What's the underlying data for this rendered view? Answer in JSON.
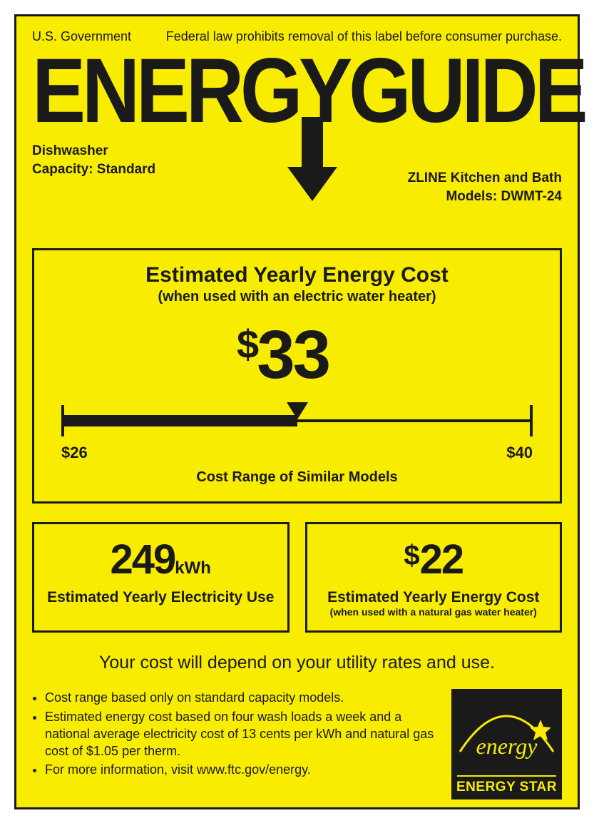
{
  "header": {
    "gov": "U.S. Government",
    "law": "Federal law prohibits removal of this label before consumer purchase."
  },
  "logo": {
    "text": "ENERGYGUIDE"
  },
  "meta": {
    "product": "Dishwasher",
    "capacity_label": "Capacity: Standard",
    "brand": "ZLINE Kitchen and Bath",
    "models_label": "Models: DWMT-24"
  },
  "cost_box": {
    "title": "Estimated Yearly Energy Cost",
    "subtitle": "(when used with an electric water heater)",
    "value": "33",
    "currency": "$",
    "scale": {
      "min_label": "$26",
      "max_label": "$40",
      "min": 26,
      "max": 40,
      "value": 33,
      "caption": "Cost Range of Similar Models",
      "fill_pct": 50,
      "pointer_pct": 50
    }
  },
  "box_kwh": {
    "value": "249",
    "unit": "kWh",
    "label": "Estimated Yearly Electricity Use"
  },
  "box_gas": {
    "currency": "$",
    "value": "22",
    "label": "Estimated Yearly Energy Cost",
    "sub": "(when used with a natural gas water heater)"
  },
  "depend_text": "Your cost will depend on your utility rates and use.",
  "bullets": [
    "Cost range based only on standard capacity models.",
    "Estimated energy cost based on four wash loads a week and a national average electricity cost of 13 cents per kWh and natural gas cost of $1.05 per therm.",
    "For more information, visit www.ftc.gov/energy."
  ],
  "energy_star": {
    "script": "energy",
    "label": "ENERGY STAR"
  },
  "colors": {
    "bg": "#f8ec00",
    "fg": "#1a1a1a"
  }
}
